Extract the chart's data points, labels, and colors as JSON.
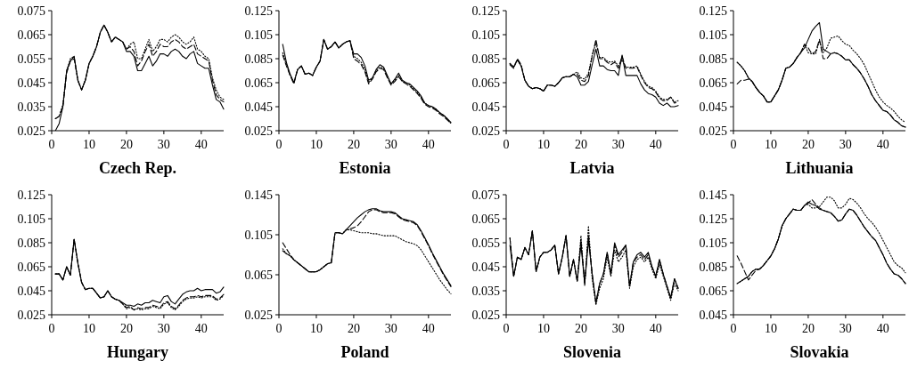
{
  "chart_data": [
    {
      "type": "line",
      "title": "Czech Rep.",
      "x": [
        1,
        2,
        3,
        4,
        5,
        6,
        7,
        8,
        9,
        10,
        11,
        12,
        13,
        14,
        15,
        16,
        17,
        18,
        19,
        20,
        21,
        22,
        23,
        24,
        25,
        26,
        27,
        28,
        29,
        30,
        31,
        32,
        33,
        34,
        35,
        36,
        37,
        38,
        39,
        40,
        41,
        42,
        43,
        44,
        45,
        46
      ],
      "xlim": [
        0,
        46
      ],
      "xticks": [
        0,
        10,
        20,
        30,
        40
      ],
      "ylim": [
        0.025,
        0.075
      ],
      "yticks": [
        0.025,
        0.035,
        0.045,
        0.055,
        0.065,
        0.075
      ],
      "series": [
        {
          "color": "#000000",
          "line_style": "solid",
          "values": [
            0.025,
            0.028,
            0.035,
            0.05,
            0.054,
            0.056,
            0.046,
            0.042,
            0.046,
            0.053,
            0.056,
            0.06,
            0.066,
            0.069,
            0.066,
            0.062,
            0.064,
            0.063,
            0.062,
            0.058,
            0.058,
            0.056,
            0.05,
            0.05,
            0.053,
            0.056,
            0.052,
            0.054,
            0.057,
            0.057,
            0.056,
            0.058,
            0.059,
            0.058,
            0.056,
            0.055,
            0.057,
            0.058,
            0.053,
            0.052,
            0.051,
            0.051,
            0.044,
            0.038,
            0.037,
            0.034
          ]
        },
        {
          "color": "#000000",
          "line_style": "dashed",
          "values": [
            0.03,
            0.031,
            0.035,
            0.049,
            0.054,
            0.055,
            0.046,
            0.042,
            0.046,
            0.053,
            0.056,
            0.06,
            0.066,
            0.069,
            0.066,
            0.062,
            0.064,
            0.063,
            0.062,
            0.059,
            0.06,
            0.058,
            0.052,
            0.054,
            0.058,
            0.061,
            0.056,
            0.058,
            0.061,
            0.06,
            0.06,
            0.062,
            0.063,
            0.062,
            0.06,
            0.059,
            0.06,
            0.061,
            0.057,
            0.056,
            0.055,
            0.054,
            0.046,
            0.04,
            0.038,
            0.037
          ]
        },
        {
          "color": "#000000",
          "line_style": "dotted",
          "values": [
            0.03,
            0.031,
            0.036,
            0.05,
            0.055,
            0.056,
            0.046,
            0.042,
            0.046,
            0.053,
            0.056,
            0.06,
            0.066,
            0.069,
            0.066,
            0.062,
            0.064,
            0.063,
            0.062,
            0.059,
            0.061,
            0.062,
            0.055,
            0.055,
            0.059,
            0.063,
            0.058,
            0.06,
            0.063,
            0.063,
            0.062,
            0.064,
            0.065,
            0.064,
            0.062,
            0.061,
            0.062,
            0.064,
            0.059,
            0.058,
            0.056,
            0.055,
            0.047,
            0.042,
            0.039,
            0.038
          ]
        }
      ]
    },
    {
      "type": "line",
      "title": "Estonia",
      "x": [
        1,
        2,
        3,
        4,
        5,
        6,
        7,
        8,
        9,
        10,
        11,
        12,
        13,
        14,
        15,
        16,
        17,
        18,
        19,
        20,
        21,
        22,
        23,
        24,
        25,
        26,
        27,
        28,
        29,
        30,
        31,
        32,
        33,
        34,
        35,
        36,
        37,
        38,
        39,
        40,
        41,
        42,
        43,
        44,
        45,
        46
      ],
      "xlim": [
        0,
        46
      ],
      "xticks": [
        0,
        10,
        20,
        30,
        40
      ],
      "ylim": [
        0.025,
        0.125
      ],
      "yticks": [
        0.025,
        0.045,
        0.065,
        0.085,
        0.105,
        0.125
      ],
      "series": [
        {
          "color": "#000000",
          "line_style": "solid",
          "values": [
            0.097,
            0.082,
            0.072,
            0.065,
            0.076,
            0.079,
            0.072,
            0.073,
            0.071,
            0.078,
            0.083,
            0.101,
            0.093,
            0.095,
            0.099,
            0.094,
            0.097,
            0.099,
            0.1,
            0.089,
            0.089,
            0.086,
            0.079,
            0.067,
            0.069,
            0.076,
            0.08,
            0.078,
            0.071,
            0.064,
            0.068,
            0.073,
            0.067,
            0.065,
            0.064,
            0.061,
            0.058,
            0.054,
            0.048,
            0.046,
            0.045,
            0.043,
            0.04,
            0.038,
            0.035,
            0.032
          ]
        },
        {
          "color": "#000000",
          "line_style": "dashed",
          "values": [
            0.088,
            0.079,
            0.071,
            0.064,
            0.076,
            0.079,
            0.072,
            0.073,
            0.071,
            0.078,
            0.083,
            0.101,
            0.093,
            0.095,
            0.099,
            0.094,
            0.097,
            0.099,
            0.1,
            0.085,
            0.083,
            0.08,
            0.074,
            0.064,
            0.068,
            0.074,
            0.077,
            0.076,
            0.069,
            0.063,
            0.066,
            0.07,
            0.066,
            0.064,
            0.062,
            0.059,
            0.056,
            0.052,
            0.047,
            0.045,
            0.044,
            0.042,
            0.039,
            0.037,
            0.034,
            0.031
          ]
        },
        {
          "color": "#000000",
          "line_style": "dotted",
          "values": [
            0.09,
            0.08,
            0.071,
            0.065,
            0.076,
            0.079,
            0.072,
            0.073,
            0.071,
            0.078,
            0.083,
            0.101,
            0.093,
            0.095,
            0.099,
            0.094,
            0.097,
            0.099,
            0.1,
            0.087,
            0.085,
            0.082,
            0.076,
            0.065,
            0.069,
            0.075,
            0.078,
            0.077,
            0.07,
            0.064,
            0.067,
            0.071,
            0.066,
            0.065,
            0.063,
            0.06,
            0.057,
            0.053,
            0.048,
            0.046,
            0.045,
            0.043,
            0.04,
            0.038,
            0.035,
            0.031
          ]
        }
      ]
    },
    {
      "type": "line",
      "title": "Latvia",
      "x": [
        1,
        2,
        3,
        4,
        5,
        6,
        7,
        8,
        9,
        10,
        11,
        12,
        13,
        14,
        15,
        16,
        17,
        18,
        19,
        20,
        21,
        22,
        23,
        24,
        25,
        26,
        27,
        28,
        29,
        30,
        31,
        32,
        33,
        34,
        35,
        36,
        37,
        38,
        39,
        40,
        41,
        42,
        43,
        44,
        45,
        46
      ],
      "xlim": [
        0,
        46
      ],
      "xticks": [
        0,
        10,
        20,
        30,
        40
      ],
      "ylim": [
        0.025,
        0.125
      ],
      "yticks": [
        0.025,
        0.045,
        0.065,
        0.085,
        0.105,
        0.125
      ],
      "series": [
        {
          "color": "#000000",
          "line_style": "solid",
          "values": [
            0.081,
            0.078,
            0.084,
            0.079,
            0.067,
            0.062,
            0.06,
            0.061,
            0.06,
            0.058,
            0.063,
            0.063,
            0.062,
            0.065,
            0.069,
            0.07,
            0.07,
            0.072,
            0.07,
            0.063,
            0.063,
            0.066,
            0.08,
            0.093,
            0.079,
            0.079,
            0.076,
            0.075,
            0.075,
            0.071,
            0.088,
            0.071,
            0.071,
            0.071,
            0.071,
            0.064,
            0.059,
            0.056,
            0.055,
            0.053,
            0.048,
            0.046,
            0.048,
            0.045,
            0.045,
            0.046
          ]
        },
        {
          "color": "#000000",
          "line_style": "dashed",
          "values": [
            0.08,
            0.077,
            0.085,
            0.08,
            0.067,
            0.062,
            0.06,
            0.061,
            0.06,
            0.058,
            0.063,
            0.063,
            0.062,
            0.065,
            0.069,
            0.07,
            0.07,
            0.072,
            0.072,
            0.067,
            0.066,
            0.071,
            0.087,
            0.101,
            0.085,
            0.085,
            0.082,
            0.08,
            0.082,
            0.077,
            0.087,
            0.077,
            0.077,
            0.077,
            0.078,
            0.071,
            0.065,
            0.061,
            0.06,
            0.057,
            0.052,
            0.05,
            0.05,
            0.053,
            0.048,
            0.049
          ]
        },
        {
          "color": "#000000",
          "line_style": "dotted",
          "values": [
            0.081,
            0.078,
            0.084,
            0.079,
            0.067,
            0.062,
            0.06,
            0.061,
            0.06,
            0.058,
            0.063,
            0.063,
            0.062,
            0.065,
            0.069,
            0.07,
            0.07,
            0.072,
            0.074,
            0.069,
            0.068,
            0.073,
            0.088,
            0.098,
            0.086,
            0.086,
            0.083,
            0.082,
            0.083,
            0.079,
            0.084,
            0.078,
            0.078,
            0.078,
            0.079,
            0.072,
            0.066,
            0.062,
            0.061,
            0.058,
            0.053,
            0.051,
            0.051,
            0.053,
            0.049,
            0.05
          ]
        }
      ]
    },
    {
      "type": "line",
      "title": "Lithuania",
      "x": [
        1,
        2,
        3,
        4,
        5,
        6,
        7,
        8,
        9,
        10,
        11,
        12,
        13,
        14,
        15,
        16,
        17,
        18,
        19,
        20,
        21,
        22,
        23,
        24,
        25,
        26,
        27,
        28,
        29,
        30,
        31,
        32,
        33,
        34,
        35,
        36,
        37,
        38,
        39,
        40,
        41,
        42,
        43,
        44,
        45,
        46
      ],
      "xlim": [
        0,
        46
      ],
      "xticks": [
        0,
        10,
        20,
        30,
        40
      ],
      "ylim": [
        0.025,
        0.125
      ],
      "yticks": [
        0.025,
        0.045,
        0.065,
        0.085,
        0.105,
        0.125
      ],
      "series": [
        {
          "color": "#000000",
          "line_style": "solid",
          "values": [
            0.082,
            0.079,
            0.075,
            0.069,
            0.066,
            0.061,
            0.057,
            0.054,
            0.049,
            0.049,
            0.054,
            0.059,
            0.067,
            0.077,
            0.078,
            0.081,
            0.086,
            0.09,
            0.094,
            0.101,
            0.108,
            0.112,
            0.115,
            0.093,
            0.091,
            0.089,
            0.09,
            0.089,
            0.087,
            0.084,
            0.084,
            0.08,
            0.077,
            0.073,
            0.068,
            0.062,
            0.055,
            0.05,
            0.046,
            0.042,
            0.041,
            0.038,
            0.034,
            0.032,
            0.029,
            0.028
          ]
        },
        {
          "color": "#000000",
          "line_style": "dashed",
          "values": [
            0.064,
            0.067,
            0.067,
            0.068,
            0.066,
            0.061,
            0.057,
            0.054,
            0.049,
            0.049,
            0.054,
            0.059,
            0.067,
            0.077,
            0.078,
            0.081,
            0.086,
            0.09,
            0.097,
            0.094,
            0.089,
            0.091,
            0.101,
            0.085,
            0.085,
            0.089,
            0.09,
            0.089,
            0.087,
            0.084,
            0.084,
            0.08,
            0.077,
            0.073,
            0.068,
            0.062,
            0.055,
            0.05,
            0.046,
            0.042,
            0.041,
            0.038,
            0.034,
            0.032,
            0.029,
            0.028
          ]
        },
        {
          "color": "#000000",
          "line_style": "dotted",
          "values": [
            0.082,
            0.079,
            0.075,
            0.069,
            0.066,
            0.061,
            0.057,
            0.054,
            0.049,
            0.049,
            0.054,
            0.059,
            0.067,
            0.077,
            0.078,
            0.081,
            0.086,
            0.09,
            0.097,
            0.09,
            0.089,
            0.089,
            0.1,
            0.09,
            0.094,
            0.102,
            0.103,
            0.104,
            0.1,
            0.097,
            0.096,
            0.092,
            0.089,
            0.085,
            0.08,
            0.073,
            0.066,
            0.059,
            0.053,
            0.049,
            0.046,
            0.044,
            0.041,
            0.037,
            0.034,
            0.032
          ]
        }
      ]
    },
    {
      "type": "line",
      "title": "Hungary",
      "x": [
        1,
        2,
        3,
        4,
        5,
        6,
        7,
        8,
        9,
        10,
        11,
        12,
        13,
        14,
        15,
        16,
        17,
        18,
        19,
        20,
        21,
        22,
        23,
        24,
        25,
        26,
        27,
        28,
        29,
        30,
        31,
        32,
        33,
        34,
        35,
        36,
        37,
        38,
        39,
        40,
        41,
        42,
        43,
        44,
        45,
        46
      ],
      "xlim": [
        0,
        46
      ],
      "xticks": [
        0,
        10,
        20,
        30,
        40
      ],
      "ylim": [
        0.025,
        0.125
      ],
      "yticks": [
        0.025,
        0.045,
        0.065,
        0.085,
        0.105,
        0.125
      ],
      "series": [
        {
          "color": "#000000",
          "line_style": "solid",
          "values": [
            0.059,
            0.059,
            0.054,
            0.065,
            0.058,
            0.088,
            0.068,
            0.052,
            0.046,
            0.047,
            0.047,
            0.043,
            0.039,
            0.04,
            0.045,
            0.04,
            0.038,
            0.037,
            0.035,
            0.033,
            0.033,
            0.032,
            0.034,
            0.033,
            0.035,
            0.035,
            0.037,
            0.036,
            0.035,
            0.04,
            0.041,
            0.036,
            0.034,
            0.038,
            0.042,
            0.044,
            0.045,
            0.045,
            0.047,
            0.045,
            0.046,
            0.046,
            0.046,
            0.043,
            0.044,
            0.048
          ]
        },
        {
          "color": "#000000",
          "line_style": "dashed",
          "values": [
            0.059,
            0.059,
            0.054,
            0.065,
            0.058,
            0.088,
            0.068,
            0.052,
            0.046,
            0.047,
            0.047,
            0.043,
            0.039,
            0.04,
            0.045,
            0.04,
            0.038,
            0.037,
            0.034,
            0.031,
            0.032,
            0.029,
            0.031,
            0.03,
            0.031,
            0.031,
            0.033,
            0.032,
            0.031,
            0.035,
            0.036,
            0.032,
            0.03,
            0.033,
            0.037,
            0.039,
            0.04,
            0.04,
            0.041,
            0.04,
            0.041,
            0.041,
            0.041,
            0.038,
            0.039,
            0.042
          ]
        },
        {
          "color": "#000000",
          "line_style": "dotted",
          "values": [
            0.059,
            0.059,
            0.054,
            0.065,
            0.058,
            0.088,
            0.068,
            0.052,
            0.046,
            0.047,
            0.047,
            0.043,
            0.039,
            0.04,
            0.045,
            0.04,
            0.038,
            0.037,
            0.034,
            0.03,
            0.031,
            0.029,
            0.03,
            0.029,
            0.03,
            0.03,
            0.032,
            0.031,
            0.03,
            0.034,
            0.035,
            0.031,
            0.029,
            0.032,
            0.036,
            0.038,
            0.039,
            0.039,
            0.04,
            0.039,
            0.04,
            0.04,
            0.04,
            0.037,
            0.038,
            0.041
          ]
        }
      ]
    },
    {
      "type": "line",
      "title": "Poland",
      "x": [
        1,
        2,
        3,
        4,
        5,
        6,
        7,
        8,
        9,
        10,
        11,
        12,
        13,
        14,
        15,
        16,
        17,
        18,
        19,
        20,
        21,
        22,
        23,
        24,
        25,
        26,
        27,
        28,
        29,
        30,
        31,
        32,
        33,
        34,
        35,
        36,
        37,
        38,
        39,
        40,
        41,
        42,
        43,
        44,
        45,
        46
      ],
      "xlim": [
        0,
        46
      ],
      "xticks": [
        0,
        10,
        20,
        30,
        40
      ],
      "ylim": [
        0.025,
        0.145
      ],
      "yticks": [
        0.025,
        0.065,
        0.105,
        0.145
      ],
      "series": [
        {
          "color": "#000000",
          "line_style": "solid",
          "values": [
            0.089,
            0.086,
            0.084,
            0.08,
            0.077,
            0.074,
            0.071,
            0.068,
            0.068,
            0.068,
            0.07,
            0.073,
            0.076,
            0.077,
            0.107,
            0.107,
            0.106,
            0.11,
            0.114,
            0.118,
            0.122,
            0.125,
            0.128,
            0.13,
            0.131,
            0.131,
            0.129,
            0.128,
            0.128,
            0.128,
            0.127,
            0.124,
            0.121,
            0.12,
            0.119,
            0.118,
            0.115,
            0.109,
            0.102,
            0.095,
            0.087,
            0.08,
            0.073,
            0.066,
            0.06,
            0.054
          ]
        },
        {
          "color": "#000000",
          "line_style": "dashed",
          "values": [
            0.097,
            0.091,
            0.085,
            0.08,
            0.077,
            0.074,
            0.071,
            0.068,
            0.068,
            0.068,
            0.07,
            0.073,
            0.076,
            0.077,
            0.107,
            0.107,
            0.106,
            0.11,
            0.111,
            0.112,
            0.114,
            0.118,
            0.123,
            0.128,
            0.13,
            0.13,
            0.128,
            0.127,
            0.127,
            0.127,
            0.126,
            0.123,
            0.12,
            0.119,
            0.118,
            0.117,
            0.114,
            0.108,
            0.101,
            0.094,
            0.086,
            0.079,
            0.072,
            0.065,
            0.059,
            0.053
          ]
        },
        {
          "color": "#000000",
          "line_style": "dotted",
          "values": [
            0.091,
            0.086,
            0.084,
            0.08,
            0.077,
            0.074,
            0.071,
            0.068,
            0.068,
            0.068,
            0.07,
            0.073,
            0.076,
            0.077,
            0.107,
            0.107,
            0.106,
            0.11,
            0.11,
            0.109,
            0.108,
            0.107,
            0.107,
            0.107,
            0.106,
            0.106,
            0.105,
            0.104,
            0.104,
            0.104,
            0.104,
            0.102,
            0.1,
            0.098,
            0.097,
            0.096,
            0.094,
            0.09,
            0.084,
            0.078,
            0.072,
            0.066,
            0.06,
            0.055,
            0.05,
            0.046
          ]
        }
      ]
    },
    {
      "type": "line",
      "title": "Slovenia",
      "x": [
        1,
        2,
        3,
        4,
        5,
        6,
        7,
        8,
        9,
        10,
        11,
        12,
        13,
        14,
        15,
        16,
        17,
        18,
        19,
        20,
        21,
        22,
        23,
        24,
        25,
        26,
        27,
        28,
        29,
        30,
        31,
        32,
        33,
        34,
        35,
        36,
        37,
        38,
        39,
        40,
        41,
        42,
        43,
        44,
        45,
        46
      ],
      "xlim": [
        0,
        46
      ],
      "xticks": [
        0,
        10,
        20,
        30,
        40
      ],
      "ylim": [
        0.025,
        0.075
      ],
      "yticks": [
        0.025,
        0.035,
        0.045,
        0.055,
        0.065,
        0.075
      ],
      "series": [
        {
          "color": "#000000",
          "line_style": "solid",
          "values": [
            0.054,
            0.041,
            0.049,
            0.048,
            0.053,
            0.05,
            0.06,
            0.043,
            0.049,
            0.051,
            0.051,
            0.052,
            0.054,
            0.042,
            0.049,
            0.058,
            0.041,
            0.048,
            0.039,
            0.054,
            0.038,
            0.056,
            0.042,
            0.03,
            0.038,
            0.042,
            0.051,
            0.042,
            0.055,
            0.05,
            0.052,
            0.054,
            0.037,
            0.047,
            0.05,
            0.051,
            0.049,
            0.051,
            0.045,
            0.041,
            0.048,
            0.042,
            0.037,
            0.032,
            0.04,
            0.036
          ]
        },
        {
          "color": "#000000",
          "line_style": "dashed",
          "values": [
            0.057,
            0.041,
            0.049,
            0.048,
            0.053,
            0.05,
            0.06,
            0.043,
            0.049,
            0.051,
            0.051,
            0.052,
            0.054,
            0.042,
            0.049,
            0.058,
            0.041,
            0.048,
            0.039,
            0.056,
            0.038,
            0.058,
            0.042,
            0.03,
            0.038,
            0.042,
            0.051,
            0.042,
            0.054,
            0.049,
            0.051,
            0.054,
            0.037,
            0.047,
            0.049,
            0.05,
            0.048,
            0.05,
            0.045,
            0.041,
            0.048,
            0.042,
            0.037,
            0.032,
            0.04,
            0.036
          ]
        },
        {
          "color": "#000000",
          "line_style": "dotted",
          "values": [
            0.057,
            0.041,
            0.049,
            0.048,
            0.053,
            0.05,
            0.06,
            0.043,
            0.049,
            0.051,
            0.051,
            0.052,
            0.054,
            0.042,
            0.049,
            0.058,
            0.041,
            0.048,
            0.039,
            0.058,
            0.037,
            0.062,
            0.04,
            0.029,
            0.036,
            0.04,
            0.049,
            0.041,
            0.052,
            0.047,
            0.049,
            0.052,
            0.036,
            0.045,
            0.048,
            0.049,
            0.047,
            0.049,
            0.044,
            0.04,
            0.046,
            0.041,
            0.036,
            0.031,
            0.038,
            0.035
          ]
        }
      ]
    },
    {
      "type": "line",
      "title": "Slovakia",
      "x": [
        1,
        2,
        3,
        4,
        5,
        6,
        7,
        8,
        9,
        10,
        11,
        12,
        13,
        14,
        15,
        16,
        17,
        18,
        19,
        20,
        21,
        22,
        23,
        24,
        25,
        26,
        27,
        28,
        29,
        30,
        31,
        32,
        33,
        34,
        35,
        36,
        37,
        38,
        39,
        40,
        41,
        42,
        43,
        44,
        45,
        46
      ],
      "xlim": [
        0,
        46
      ],
      "xticks": [
        0,
        10,
        20,
        30,
        40
      ],
      "ylim": [
        0.045,
        0.145
      ],
      "yticks": [
        0.045,
        0.065,
        0.085,
        0.105,
        0.125,
        0.145
      ],
      "series": [
        {
          "color": "#000000",
          "line_style": "solid",
          "values": [
            0.071,
            0.073,
            0.075,
            0.077,
            0.081,
            0.083,
            0.083,
            0.086,
            0.09,
            0.094,
            0.1,
            0.108,
            0.119,
            0.125,
            0.129,
            0.133,
            0.132,
            0.132,
            0.136,
            0.139,
            0.137,
            0.136,
            0.133,
            0.132,
            0.131,
            0.13,
            0.127,
            0.123,
            0.124,
            0.129,
            0.133,
            0.132,
            0.128,
            0.123,
            0.118,
            0.114,
            0.11,
            0.107,
            0.101,
            0.095,
            0.088,
            0.083,
            0.079,
            0.078,
            0.075,
            0.071
          ]
        },
        {
          "color": "#000000",
          "line_style": "dashed",
          "values": [
            0.094,
            0.088,
            0.081,
            0.074,
            0.078,
            0.082,
            0.083,
            0.086,
            0.09,
            0.094,
            0.1,
            0.108,
            0.119,
            0.125,
            0.129,
            0.133,
            0.132,
            0.132,
            0.136,
            0.138,
            0.141,
            0.137,
            0.134,
            0.132,
            0.131,
            0.13,
            0.127,
            0.123,
            0.124,
            0.129,
            0.133,
            0.132,
            0.128,
            0.123,
            0.118,
            0.114,
            0.11,
            0.107,
            0.101,
            0.095,
            0.088,
            0.083,
            0.079,
            0.078,
            0.075,
            0.071
          ]
        },
        {
          "color": "#000000",
          "line_style": "dotted",
          "values": [
            0.071,
            0.073,
            0.075,
            0.077,
            0.081,
            0.083,
            0.083,
            0.086,
            0.09,
            0.094,
            0.1,
            0.108,
            0.119,
            0.125,
            0.129,
            0.133,
            0.132,
            0.132,
            0.136,
            0.137,
            0.134,
            0.134,
            0.135,
            0.139,
            0.143,
            0.143,
            0.14,
            0.134,
            0.134,
            0.137,
            0.142,
            0.141,
            0.138,
            0.134,
            0.129,
            0.125,
            0.122,
            0.118,
            0.113,
            0.107,
            0.101,
            0.095,
            0.089,
            0.086,
            0.084,
            0.08
          ]
        }
      ]
    }
  ]
}
